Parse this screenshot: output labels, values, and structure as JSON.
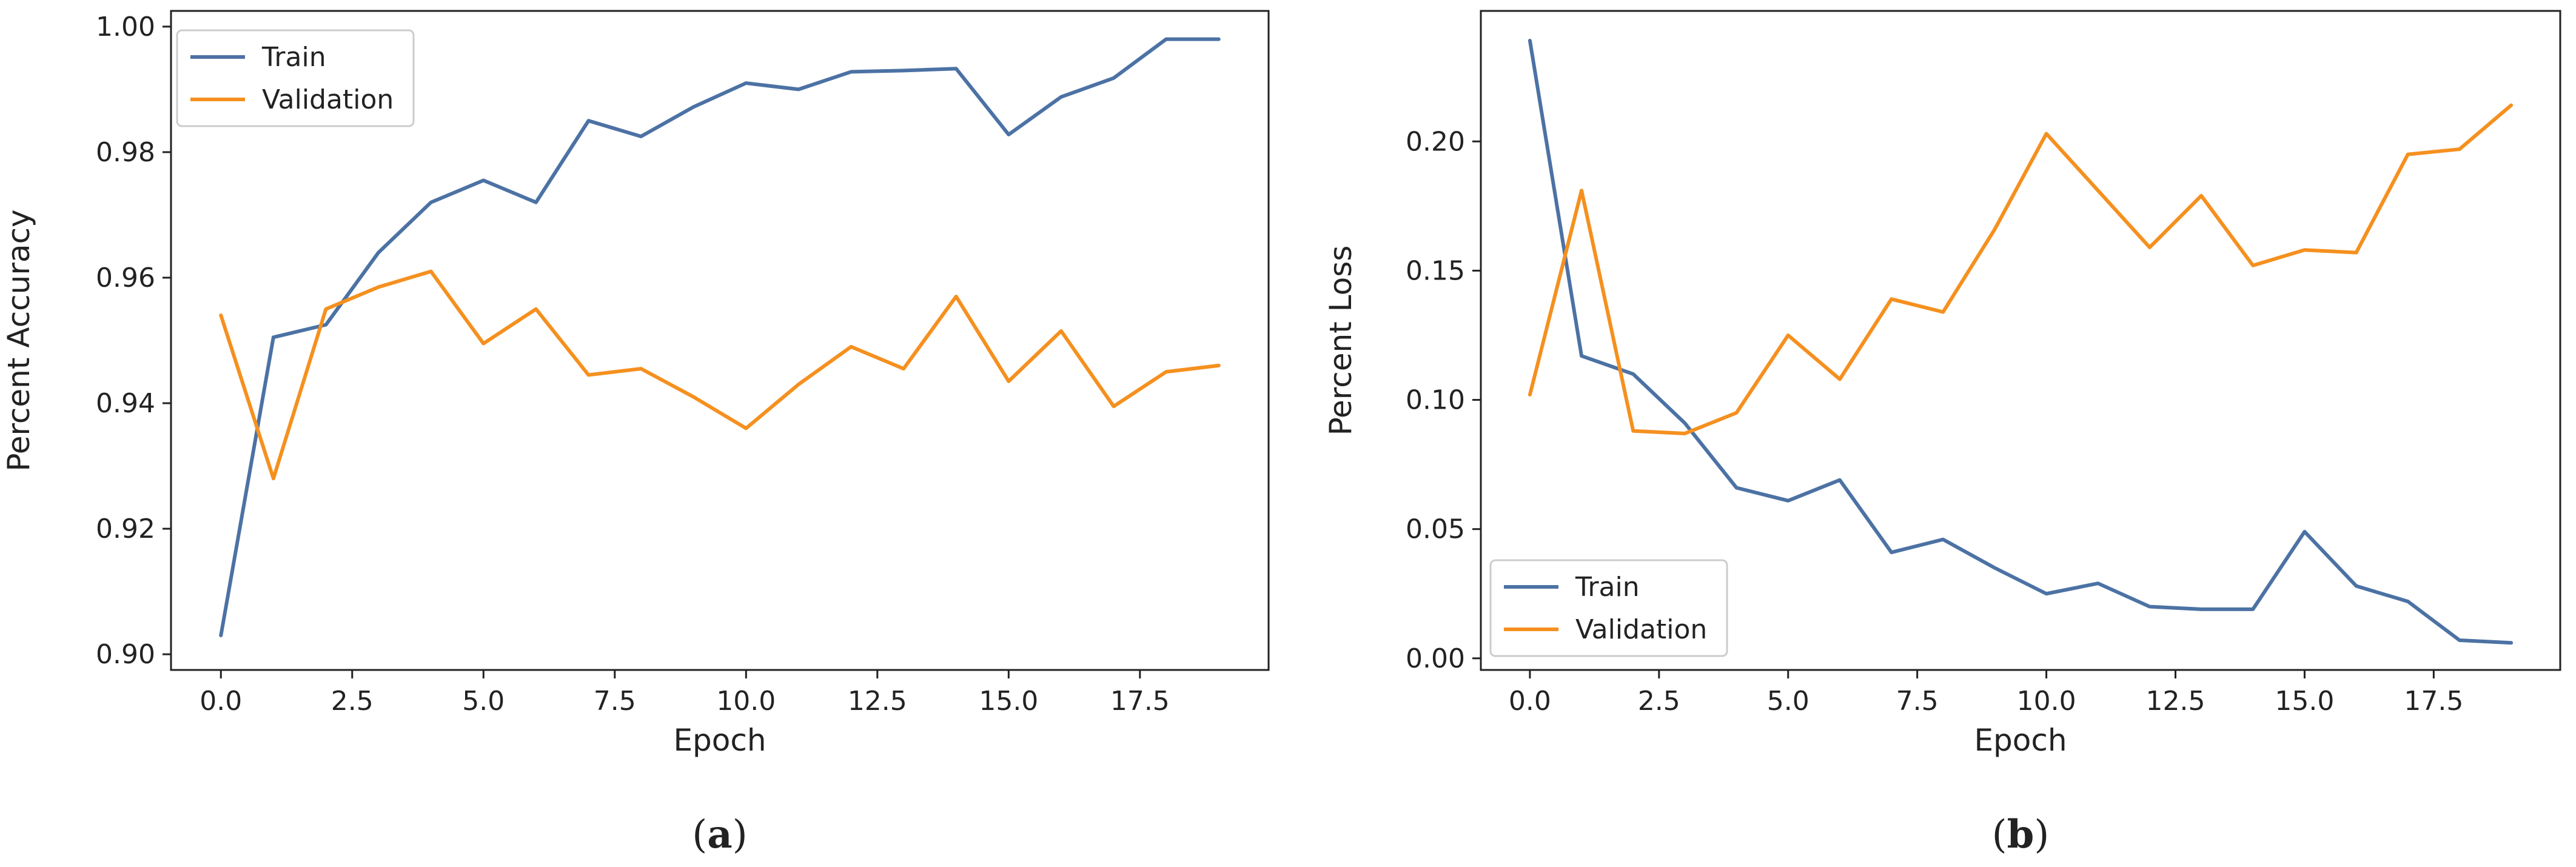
{
  "chart_data": [
    {
      "type": "line",
      "id": "a",
      "caption_open": "(",
      "caption_letter": "a",
      "caption_close": ")",
      "xlabel": "Epoch",
      "ylabel": "Percent Accuracy",
      "xlim": [
        -0.95,
        19.95
      ],
      "ylim": [
        0.8975,
        1.0025
      ],
      "xticks": [
        0.0,
        2.5,
        5.0,
        7.5,
        10.0,
        12.5,
        15.0,
        17.5
      ],
      "xtick_labels": [
        "0.0",
        "2.5",
        "5.0",
        "7.5",
        "10.0",
        "12.5",
        "15.0",
        "17.5"
      ],
      "yticks": [
        0.9,
        0.92,
        0.94,
        0.96,
        0.98,
        1.0
      ],
      "ytick_labels": [
        "0.90",
        "0.92",
        "0.94",
        "0.96",
        "0.98",
        "1.00"
      ],
      "legend_position": "upper-left",
      "x": [
        0,
        1,
        2,
        3,
        4,
        5,
        6,
        7,
        8,
        9,
        10,
        11,
        12,
        13,
        14,
        15,
        16,
        17,
        18,
        19
      ],
      "series": [
        {
          "name": "Train",
          "color": "#4c72a4",
          "values": [
            0.903,
            0.9505,
            0.9525,
            0.964,
            0.972,
            0.9755,
            0.972,
            0.985,
            0.9825,
            0.9872,
            0.991,
            0.99,
            0.9928,
            0.993,
            0.9933,
            0.9828,
            0.9888,
            0.9918,
            0.998,
            0.998
          ]
        },
        {
          "name": "Validation",
          "color": "#f5901f",
          "values": [
            0.954,
            0.928,
            0.955,
            0.9585,
            0.961,
            0.9495,
            0.955,
            0.9445,
            0.9455,
            0.941,
            0.936,
            0.943,
            0.949,
            0.9455,
            0.957,
            0.9435,
            0.9515,
            0.9395,
            0.945,
            0.946
          ]
        }
      ]
    },
    {
      "type": "line",
      "id": "b",
      "caption_open": "(",
      "caption_letter": "b",
      "caption_close": ")",
      "xlabel": "Epoch",
      "ylabel": "Percent Loss",
      "xlim": [
        -0.95,
        19.95
      ],
      "ylim": [
        -0.0045,
        0.2505
      ],
      "xticks": [
        0.0,
        2.5,
        5.0,
        7.5,
        10.0,
        12.5,
        15.0,
        17.5
      ],
      "xtick_labels": [
        "0.0",
        "2.5",
        "5.0",
        "7.5",
        "10.0",
        "12.5",
        "15.0",
        "17.5"
      ],
      "yticks": [
        0.0,
        0.05,
        0.1,
        0.15,
        0.2
      ],
      "ytick_labels": [
        "0.00",
        "0.05",
        "0.10",
        "0.15",
        "0.20"
      ],
      "legend_position": "lower-left",
      "x": [
        0,
        1,
        2,
        3,
        4,
        5,
        6,
        7,
        8,
        9,
        10,
        11,
        12,
        13,
        14,
        15,
        16,
        17,
        18,
        19
      ],
      "series": [
        {
          "name": "Train",
          "color": "#4c72a4",
          "values": [
            0.239,
            0.117,
            0.11,
            0.091,
            0.066,
            0.061,
            0.069,
            0.041,
            0.046,
            0.035,
            0.025,
            0.029,
            0.02,
            0.019,
            0.019,
            0.049,
            0.028,
            0.022,
            0.007,
            0.006
          ]
        },
        {
          "name": "Validation",
          "color": "#f5901f",
          "values": [
            0.102,
            0.181,
            0.088,
            0.087,
            0.095,
            0.125,
            0.108,
            0.139,
            0.134,
            0.166,
            0.203,
            0.181,
            0.159,
            0.179,
            0.152,
            0.158,
            0.157,
            0.195,
            0.197,
            0.214
          ]
        }
      ]
    }
  ]
}
